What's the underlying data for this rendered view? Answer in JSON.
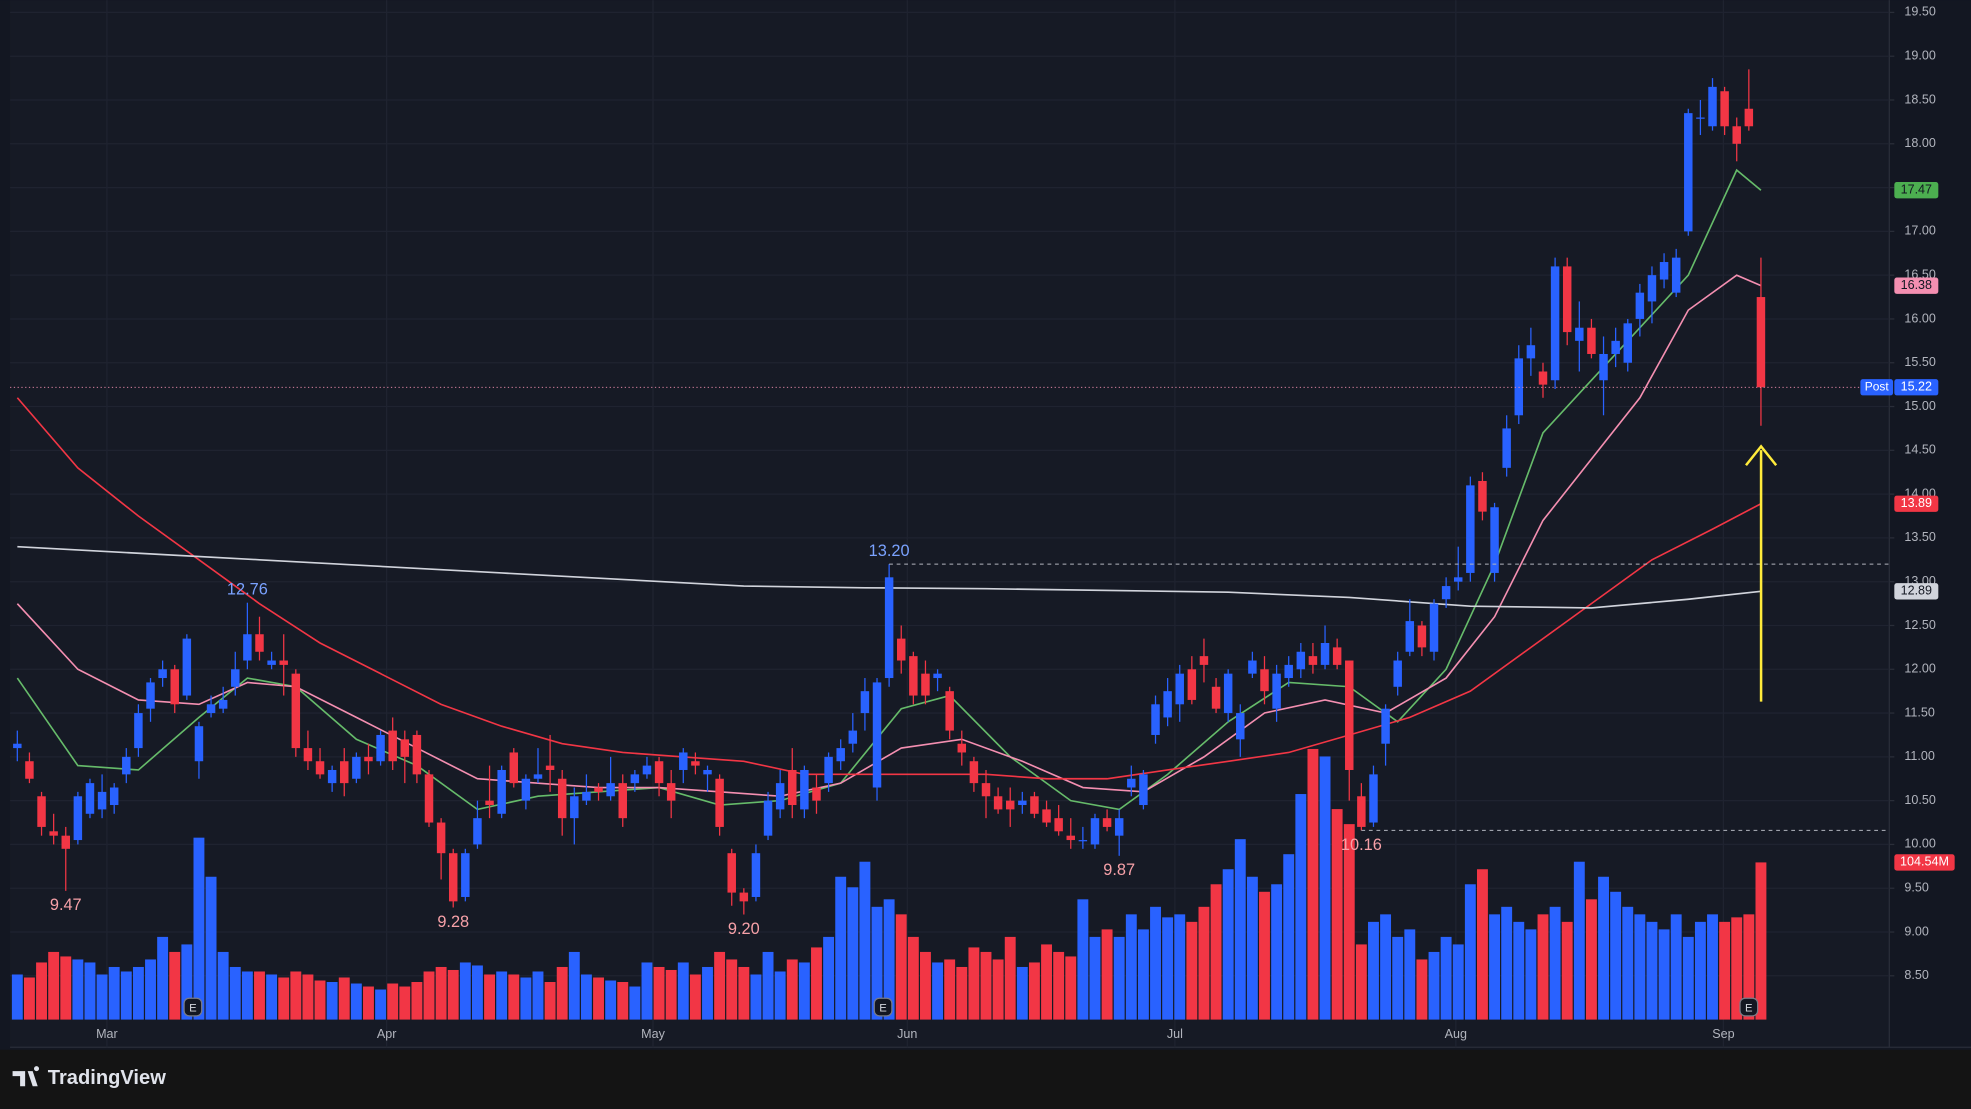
{
  "chart_data": {
    "type": "candlestick",
    "up_color": "#2962ff",
    "down_color": "#f23645",
    "ylim": [
      8.0,
      19.64
    ],
    "vlim": [
      0,
      678
    ],
    "xlim": [
      -0.6,
      154.6
    ],
    "grid": true,
    "yticks": [
      {
        "value": 8.5,
        "label": "8.50"
      },
      {
        "value": 9.0,
        "label": "9.00"
      },
      {
        "value": 9.5,
        "label": "9.50"
      },
      {
        "value": 10.0,
        "label": "10.00"
      },
      {
        "value": 10.5,
        "label": "10.50"
      },
      {
        "value": 11.0,
        "label": "11.00"
      },
      {
        "value": 11.5,
        "label": "11.50"
      },
      {
        "value": 12.0,
        "label": "12.00"
      },
      {
        "value": 12.5,
        "label": "12.50"
      },
      {
        "value": 13.0,
        "label": "13.00"
      },
      {
        "value": 13.5,
        "label": "13.50"
      },
      {
        "value": 14.0,
        "label": "14.00"
      },
      {
        "value": 14.5,
        "label": "14.50"
      },
      {
        "value": 15.0,
        "label": "15.00"
      },
      {
        "value": 15.5,
        "label": "15.50"
      },
      {
        "value": 16.0,
        "label": "16.00"
      },
      {
        "value": 16.5,
        "label": "16.50"
      },
      {
        "value": 17.0,
        "label": "17.00"
      },
      {
        "value": 17.5,
        "label": "17.50"
      },
      {
        "value": 18.0,
        "label": "18.00"
      },
      {
        "value": 18.5,
        "label": "18.50"
      },
      {
        "value": 19.0,
        "label": "19.00"
      },
      {
        "value": 19.5,
        "label": "19.50"
      }
    ],
    "xticks": [
      {
        "value": 7.4,
        "label": "Mar"
      },
      {
        "value": 30.5,
        "label": "Apr"
      },
      {
        "value": 52.5,
        "label": "May"
      },
      {
        "value": 73.5,
        "label": "Jun"
      },
      {
        "value": 95.6,
        "label": "Jul"
      },
      {
        "value": 118.8,
        "label": "Aug"
      },
      {
        "value": 140.9,
        "label": "Sep"
      }
    ],
    "candles": [
      [
        11.1,
        11.3,
        10.95,
        11.15
      ],
      [
        10.95,
        11.05,
        10.7,
        10.75
      ],
      [
        10.55,
        10.6,
        10.1,
        10.2
      ],
      [
        10.15,
        10.35,
        10.0,
        10.1
      ],
      [
        10.1,
        10.2,
        9.47,
        9.95
      ],
      [
        10.05,
        10.6,
        10.0,
        10.55
      ],
      [
        10.35,
        10.75,
        10.3,
        10.7
      ],
      [
        10.4,
        10.8,
        10.3,
        10.6
      ],
      [
        10.45,
        10.7,
        10.35,
        10.65
      ],
      [
        10.8,
        11.1,
        10.7,
        11.0
      ],
      [
        11.1,
        11.6,
        11.0,
        11.5
      ],
      [
        11.55,
        11.9,
        11.4,
        11.85
      ],
      [
        11.9,
        12.1,
        11.8,
        12.0
      ],
      [
        12.0,
        12.05,
        11.5,
        11.6
      ],
      [
        11.7,
        12.4,
        11.65,
        12.35
      ],
      [
        10.95,
        11.4,
        10.75,
        11.35
      ],
      [
        11.5,
        11.7,
        11.45,
        11.6
      ],
      [
        11.55,
        11.8,
        11.5,
        11.65
      ],
      [
        11.8,
        12.2,
        11.7,
        12.0
      ],
      [
        12.1,
        12.76,
        12.0,
        12.4
      ],
      [
        12.4,
        12.6,
        12.1,
        12.2
      ],
      [
        12.05,
        12.2,
        12.0,
        12.1
      ],
      [
        12.1,
        12.4,
        11.7,
        12.05
      ],
      [
        11.95,
        12.0,
        11.0,
        11.1
      ],
      [
        11.1,
        11.3,
        10.85,
        10.95
      ],
      [
        10.95,
        11.1,
        10.75,
        10.8
      ],
      [
        10.7,
        10.9,
        10.6,
        10.85
      ],
      [
        10.95,
        11.1,
        10.55,
        10.7
      ],
      [
        10.75,
        11.05,
        10.7,
        11.0
      ],
      [
        11.0,
        11.15,
        10.8,
        10.95
      ],
      [
        10.95,
        11.3,
        10.9,
        11.25
      ],
      [
        11.3,
        11.45,
        10.85,
        10.95
      ],
      [
        11.2,
        11.3,
        10.7,
        11.0
      ],
      [
        11.25,
        11.3,
        10.7,
        10.8
      ],
      [
        10.8,
        10.85,
        10.2,
        10.25
      ],
      [
        10.25,
        10.3,
        9.6,
        9.9
      ],
      [
        9.9,
        9.95,
        9.28,
        9.35
      ],
      [
        9.4,
        9.95,
        9.35,
        9.9
      ],
      [
        10.0,
        10.5,
        9.95,
        10.3
      ],
      [
        10.5,
        10.9,
        10.3,
        10.45
      ],
      [
        10.35,
        10.9,
        10.3,
        10.85
      ],
      [
        11.05,
        11.1,
        10.65,
        10.7
      ],
      [
        10.5,
        10.8,
        10.4,
        10.75
      ],
      [
        10.75,
        11.1,
        10.7,
        10.8
      ],
      [
        10.9,
        11.25,
        10.6,
        10.85
      ],
      [
        10.75,
        10.85,
        10.1,
        10.3
      ],
      [
        10.3,
        10.65,
        10.0,
        10.55
      ],
      [
        10.5,
        10.8,
        10.45,
        10.6
      ],
      [
        10.65,
        10.7,
        10.5,
        10.6
      ],
      [
        10.55,
        11.0,
        10.5,
        10.7
      ],
      [
        10.7,
        10.8,
        10.2,
        10.3
      ],
      [
        10.7,
        10.85,
        10.6,
        10.8
      ],
      [
        10.8,
        11.0,
        10.75,
        10.9
      ],
      [
        10.95,
        11.0,
        10.55,
        10.7
      ],
      [
        10.7,
        10.85,
        10.3,
        10.5
      ],
      [
        10.85,
        11.1,
        10.7,
        11.05
      ],
      [
        10.95,
        11.05,
        10.8,
        10.9
      ],
      [
        10.8,
        10.9,
        10.6,
        10.85
      ],
      [
        10.75,
        10.8,
        10.1,
        10.2
      ],
      [
        9.9,
        9.95,
        9.3,
        9.45
      ],
      [
        9.45,
        9.5,
        9.2,
        9.35
      ],
      [
        9.4,
        10.0,
        9.35,
        9.9
      ],
      [
        10.1,
        10.6,
        10.05,
        10.5
      ],
      [
        10.4,
        10.85,
        10.3,
        10.7
      ],
      [
        10.85,
        11.1,
        10.3,
        10.45
      ],
      [
        10.4,
        10.9,
        10.3,
        10.85
      ],
      [
        10.65,
        10.8,
        10.35,
        10.5
      ],
      [
        10.7,
        11.05,
        10.6,
        11.0
      ],
      [
        10.95,
        11.2,
        10.85,
        11.1
      ],
      [
        11.15,
        11.5,
        11.05,
        11.3
      ],
      [
        11.5,
        11.9,
        11.3,
        11.75
      ],
      [
        10.65,
        11.9,
        10.5,
        11.85
      ],
      [
        11.9,
        13.2,
        11.8,
        13.05
      ],
      [
        12.35,
        12.5,
        11.95,
        12.1
      ],
      [
        12.15,
        12.2,
        11.6,
        11.7
      ],
      [
        11.95,
        12.1,
        11.6,
        11.7
      ],
      [
        11.9,
        12.0,
        11.75,
        11.95
      ],
      [
        11.75,
        11.8,
        11.2,
        11.3
      ],
      [
        11.15,
        11.3,
        10.9,
        11.05
      ],
      [
        10.95,
        11.0,
        10.6,
        10.7
      ],
      [
        10.7,
        10.85,
        10.3,
        10.55
      ],
      [
        10.55,
        10.65,
        10.35,
        10.4
      ],
      [
        10.5,
        10.65,
        10.2,
        10.4
      ],
      [
        10.45,
        10.6,
        10.35,
        10.5
      ],
      [
        10.55,
        10.6,
        10.3,
        10.35
      ],
      [
        10.4,
        10.5,
        10.2,
        10.25
      ],
      [
        10.3,
        10.45,
        10.1,
        10.15
      ],
      [
        10.1,
        10.3,
        9.95,
        10.05
      ],
      [
        10.05,
        10.2,
        9.95,
        10.05
      ],
      [
        10.0,
        10.35,
        9.95,
        10.3
      ],
      [
        10.3,
        10.4,
        10.15,
        10.2
      ],
      [
        10.1,
        10.4,
        9.87,
        10.3
      ],
      [
        10.65,
        10.9,
        10.55,
        10.75
      ],
      [
        10.45,
        10.85,
        10.4,
        10.8
      ],
      [
        11.25,
        11.7,
        11.15,
        11.6
      ],
      [
        11.45,
        11.9,
        11.35,
        11.75
      ],
      [
        11.6,
        12.05,
        11.4,
        11.95
      ],
      [
        12.0,
        12.15,
        11.6,
        11.65
      ],
      [
        12.15,
        12.35,
        11.85,
        12.05
      ],
      [
        11.8,
        11.9,
        11.5,
        11.55
      ],
      [
        11.5,
        12.0,
        11.4,
        11.95
      ],
      [
        11.2,
        11.6,
        11.0,
        11.5
      ],
      [
        11.95,
        12.2,
        11.9,
        12.1
      ],
      [
        12.0,
        12.15,
        11.6,
        11.75
      ],
      [
        11.55,
        12.05,
        11.4,
        11.95
      ],
      [
        11.9,
        12.15,
        11.8,
        12.05
      ],
      [
        12.0,
        12.3,
        11.9,
        12.2
      ],
      [
        12.15,
        12.3,
        11.95,
        12.05
      ],
      [
        12.05,
        12.5,
        12.0,
        12.3
      ],
      [
        12.25,
        12.35,
        12.0,
        12.05
      ],
      [
        12.1,
        12.1,
        10.5,
        10.85
      ],
      [
        10.55,
        10.7,
        10.16,
        10.2
      ],
      [
        10.25,
        10.9,
        10.2,
        10.8
      ],
      [
        11.15,
        11.6,
        10.9,
        11.55
      ],
      [
        11.8,
        12.2,
        11.7,
        12.1
      ],
      [
        12.2,
        12.8,
        12.15,
        12.55
      ],
      [
        12.5,
        12.55,
        12.15,
        12.25
      ],
      [
        12.2,
        12.8,
        12.1,
        12.75
      ],
      [
        12.8,
        13.05,
        12.7,
        12.95
      ],
      [
        13.0,
        13.4,
        12.9,
        13.05
      ],
      [
        13.1,
        14.2,
        13.0,
        14.1
      ],
      [
        14.15,
        14.25,
        13.7,
        13.8
      ],
      [
        13.1,
        13.9,
        13.0,
        13.85
      ],
      [
        14.3,
        14.9,
        14.2,
        14.75
      ],
      [
        14.9,
        15.7,
        14.8,
        15.55
      ],
      [
        15.55,
        15.9,
        15.35,
        15.7
      ],
      [
        15.4,
        15.5,
        15.1,
        15.25
      ],
      [
        15.3,
        16.7,
        15.2,
        16.6
      ],
      [
        16.6,
        16.7,
        15.7,
        15.85
      ],
      [
        15.75,
        16.2,
        15.4,
        15.9
      ],
      [
        15.9,
        16.0,
        15.55,
        15.6
      ],
      [
        15.3,
        15.8,
        14.9,
        15.6
      ],
      [
        15.6,
        15.9,
        15.45,
        15.75
      ],
      [
        15.5,
        16.0,
        15.4,
        15.95
      ],
      [
        16.0,
        16.4,
        15.8,
        16.3
      ],
      [
        16.2,
        16.6,
        15.95,
        16.5
      ],
      [
        16.45,
        16.75,
        16.35,
        16.65
      ],
      [
        16.3,
        16.8,
        16.25,
        16.7
      ],
      [
        17.0,
        18.4,
        16.95,
        18.35
      ],
      [
        18.3,
        18.5,
        18.1,
        18.3
      ],
      [
        18.2,
        18.75,
        18.15,
        18.65
      ],
      [
        18.6,
        18.65,
        18.1,
        18.2
      ],
      [
        18.2,
        18.3,
        17.8,
        18.0
      ],
      [
        18.4,
        18.85,
        18.15,
        18.2
      ],
      [
        16.25,
        16.7,
        14.78,
        15.22
      ]
    ],
    "volume": [
      30,
      28,
      38,
      45,
      42,
      40,
      38,
      30,
      35,
      32,
      35,
      40,
      55,
      45,
      50,
      121,
      95,
      45,
      35,
      32,
      32,
      30,
      28,
      32,
      30,
      26,
      25,
      28,
      24,
      22,
      20,
      24,
      22,
      25,
      32,
      35,
      33,
      38,
      36,
      30,
      32,
      30,
      28,
      32,
      25,
      35,
      45,
      30,
      28,
      26,
      25,
      22,
      38,
      35,
      33,
      38,
      30,
      35,
      45,
      40,
      35,
      30,
      45,
      32,
      40,
      38,
      48,
      55,
      95,
      88,
      105,
      75,
      80,
      70,
      55,
      45,
      38,
      40,
      35,
      48,
      45,
      40,
      55,
      35,
      38,
      50,
      45,
      42,
      80,
      55,
      60,
      55,
      70,
      60,
      75,
      68,
      70,
      65,
      75,
      90,
      100,
      120,
      95,
      85,
      90,
      110,
      150,
      180,
      175,
      140,
      130,
      50,
      65,
      70,
      55,
      60,
      40,
      45,
      55,
      50,
      90,
      100,
      70,
      75,
      65,
      60,
      70,
      75,
      65,
      105,
      80,
      95,
      85,
      75,
      70,
      65,
      60,
      70,
      55,
      65,
      70,
      65,
      68,
      70,
      104.54
    ],
    "series": [
      {
        "color": "#66bb6a",
        "x": [
          0,
          5,
          10,
          15,
          19,
          23,
          28,
          33,
          38,
          43,
          48,
          53,
          58,
          63,
          68,
          73,
          77,
          82,
          87,
          91,
          95,
          100,
          105,
          110,
          114,
          118,
          122,
          126,
          130,
          134,
          138,
          142,
          144
        ],
        "values": [
          11.9,
          10.9,
          10.85,
          11.45,
          11.9,
          11.8,
          11.2,
          10.9,
          10.4,
          10.55,
          10.6,
          10.65,
          10.45,
          10.5,
          10.7,
          11.55,
          11.7,
          11.0,
          10.5,
          10.4,
          10.8,
          11.4,
          11.85,
          11.8,
          11.4,
          12.0,
          13.2,
          14.7,
          15.3,
          15.9,
          16.5,
          17.7,
          17.47
        ]
      },
      {
        "color": "#f48fb1",
        "x": [
          0,
          5,
          10,
          15,
          19,
          23,
          28,
          33,
          38,
          43,
          48,
          53,
          58,
          63,
          68,
          73,
          78,
          83,
          88,
          93,
          98,
          103,
          108,
          113,
          118,
          122,
          126,
          130,
          134,
          138,
          142,
          144
        ],
        "values": [
          12.75,
          12.0,
          11.65,
          11.6,
          11.85,
          11.8,
          11.45,
          11.1,
          10.75,
          10.7,
          10.65,
          10.65,
          10.6,
          10.55,
          10.7,
          11.1,
          11.2,
          10.95,
          10.65,
          10.6,
          11.0,
          11.5,
          11.65,
          11.5,
          11.9,
          12.6,
          13.7,
          14.4,
          15.1,
          16.1,
          16.5,
          16.38
        ]
      },
      {
        "color": "#f23645",
        "x": [
          0,
          5,
          10,
          15,
          20,
          25,
          30,
          35,
          40,
          45,
          50,
          55,
          60,
          65,
          70,
          75,
          80,
          85,
          90,
          95,
          100,
          105,
          110,
          115,
          120,
          125,
          130,
          135,
          140,
          144
        ],
        "values": [
          15.1,
          14.3,
          13.75,
          13.25,
          12.75,
          12.3,
          11.95,
          11.6,
          11.35,
          11.15,
          11.05,
          11.0,
          10.95,
          10.8,
          10.8,
          10.8,
          10.8,
          10.75,
          10.75,
          10.85,
          10.95,
          11.05,
          11.25,
          11.45,
          11.75,
          12.25,
          12.75,
          13.25,
          13.6,
          13.89
        ]
      },
      {
        "color": "#d1d4dc",
        "x": [
          0,
          20,
          40,
          60,
          70,
          80,
          100,
          110,
          120,
          130,
          138,
          144
        ],
        "values": [
          13.4,
          13.25,
          13.1,
          12.95,
          12.93,
          12.92,
          12.88,
          12.82,
          12.72,
          12.7,
          12.8,
          12.89
        ]
      }
    ],
    "price_labels": [
      {
        "value": 17.47,
        "color": "#4caf50"
      },
      {
        "value": 16.38,
        "color": "#f48fb1"
      },
      {
        "value": 15.22,
        "color": "#2962ff",
        "tag": "Post"
      },
      {
        "value": 13.89,
        "color": "#f23645"
      },
      {
        "value": 12.89,
        "color": "#d1d4dc"
      }
    ],
    "volume_label": {
      "value": 104.54,
      "label": "104.54M",
      "color": "#f23645"
    },
    "annotations": [
      {
        "value": 9.47,
        "label": "9.47",
        "x": 4,
        "color": "#f7a1a8",
        "side": "below"
      },
      {
        "value": 12.76,
        "label": "12.76",
        "x": 19,
        "color": "#7aa2ff",
        "side": "above"
      },
      {
        "value": 9.28,
        "label": "9.28",
        "x": 36,
        "color": "#f7a1a8",
        "side": "below"
      },
      {
        "value": 13.2,
        "label": "13.20",
        "x": 72,
        "color": "#7aa2ff",
        "side": "above",
        "dashed": true
      },
      {
        "value": 9.2,
        "label": "9.20",
        "x": 60,
        "color": "#f7a1a8",
        "side": "below"
      },
      {
        "value": 9.87,
        "label": "9.87",
        "x": 91,
        "color": "#f7a1a8",
        "side": "below"
      },
      {
        "value": 10.16,
        "label": "10.16",
        "x": 111,
        "color": "#f7a1a8",
        "side": "below",
        "dashed": true
      }
    ],
    "earnings_markers": [
      {
        "x": 14.5,
        "label": "E"
      },
      {
        "x": 71.5,
        "label": "E"
      },
      {
        "x": 143,
        "label": "E"
      }
    ]
  },
  "footer": {
    "brand": "TradingView"
  }
}
